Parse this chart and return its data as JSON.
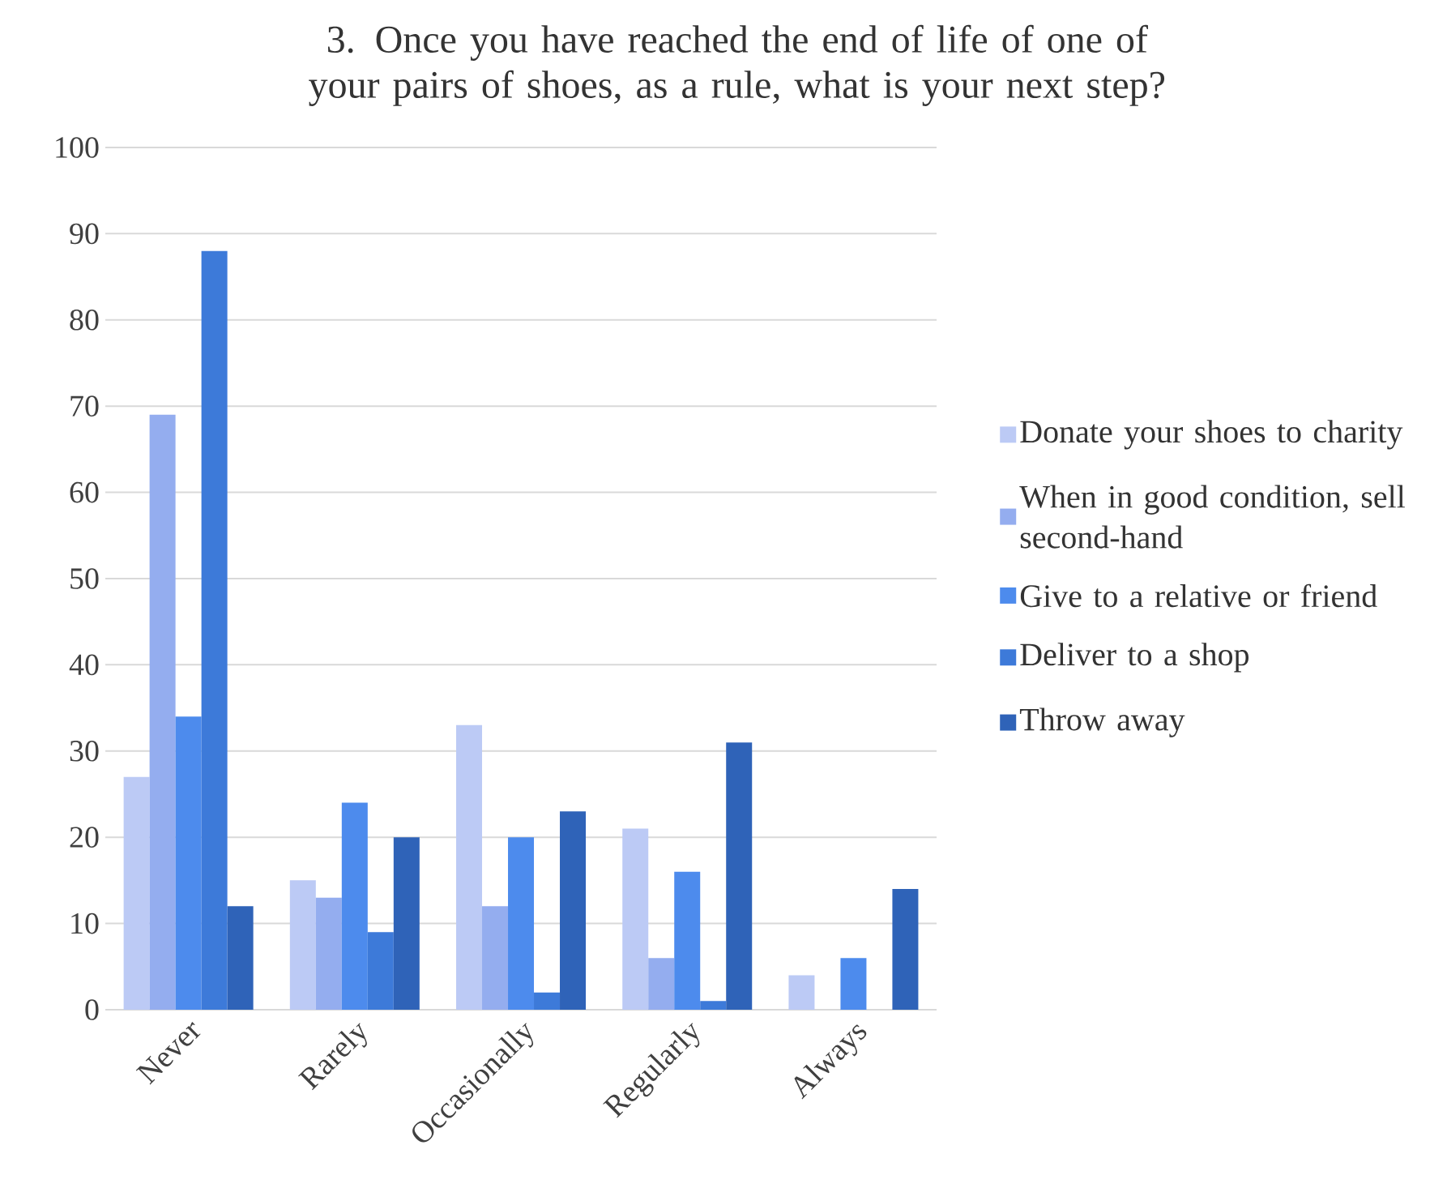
{
  "chart_data": {
    "type": "bar",
    "title": "3. Once you have reached the end of life of one of your pairs of shoes, as a rule, what is your next step?",
    "categories": [
      "Never",
      "Rarely",
      "Occasionally",
      "Regularly",
      "Always"
    ],
    "series": [
      {
        "name": "Donate your shoes to charity",
        "color": "#bccaf5",
        "values": [
          27,
          15,
          33,
          21,
          4
        ]
      },
      {
        "name": "When in good condition, sell second-hand",
        "color": "#94adef",
        "values": [
          69,
          13,
          12,
          6,
          0
        ]
      },
      {
        "name": "Give to a relative or friend",
        "color": "#4d8bed",
        "values": [
          34,
          24,
          20,
          16,
          6
        ]
      },
      {
        "name": "Deliver to a shop",
        "color": "#3d7ad9",
        "values": [
          88,
          9,
          2,
          1,
          0
        ]
      },
      {
        "name": "Throw away",
        "color": "#2f63b8",
        "values": [
          12,
          20,
          23,
          31,
          14
        ]
      }
    ],
    "ylim": [
      0,
      100
    ],
    "yticks": [
      0,
      10,
      20,
      30,
      40,
      50,
      60,
      70,
      80,
      90,
      100
    ],
    "grid": "y",
    "legend": "right"
  }
}
